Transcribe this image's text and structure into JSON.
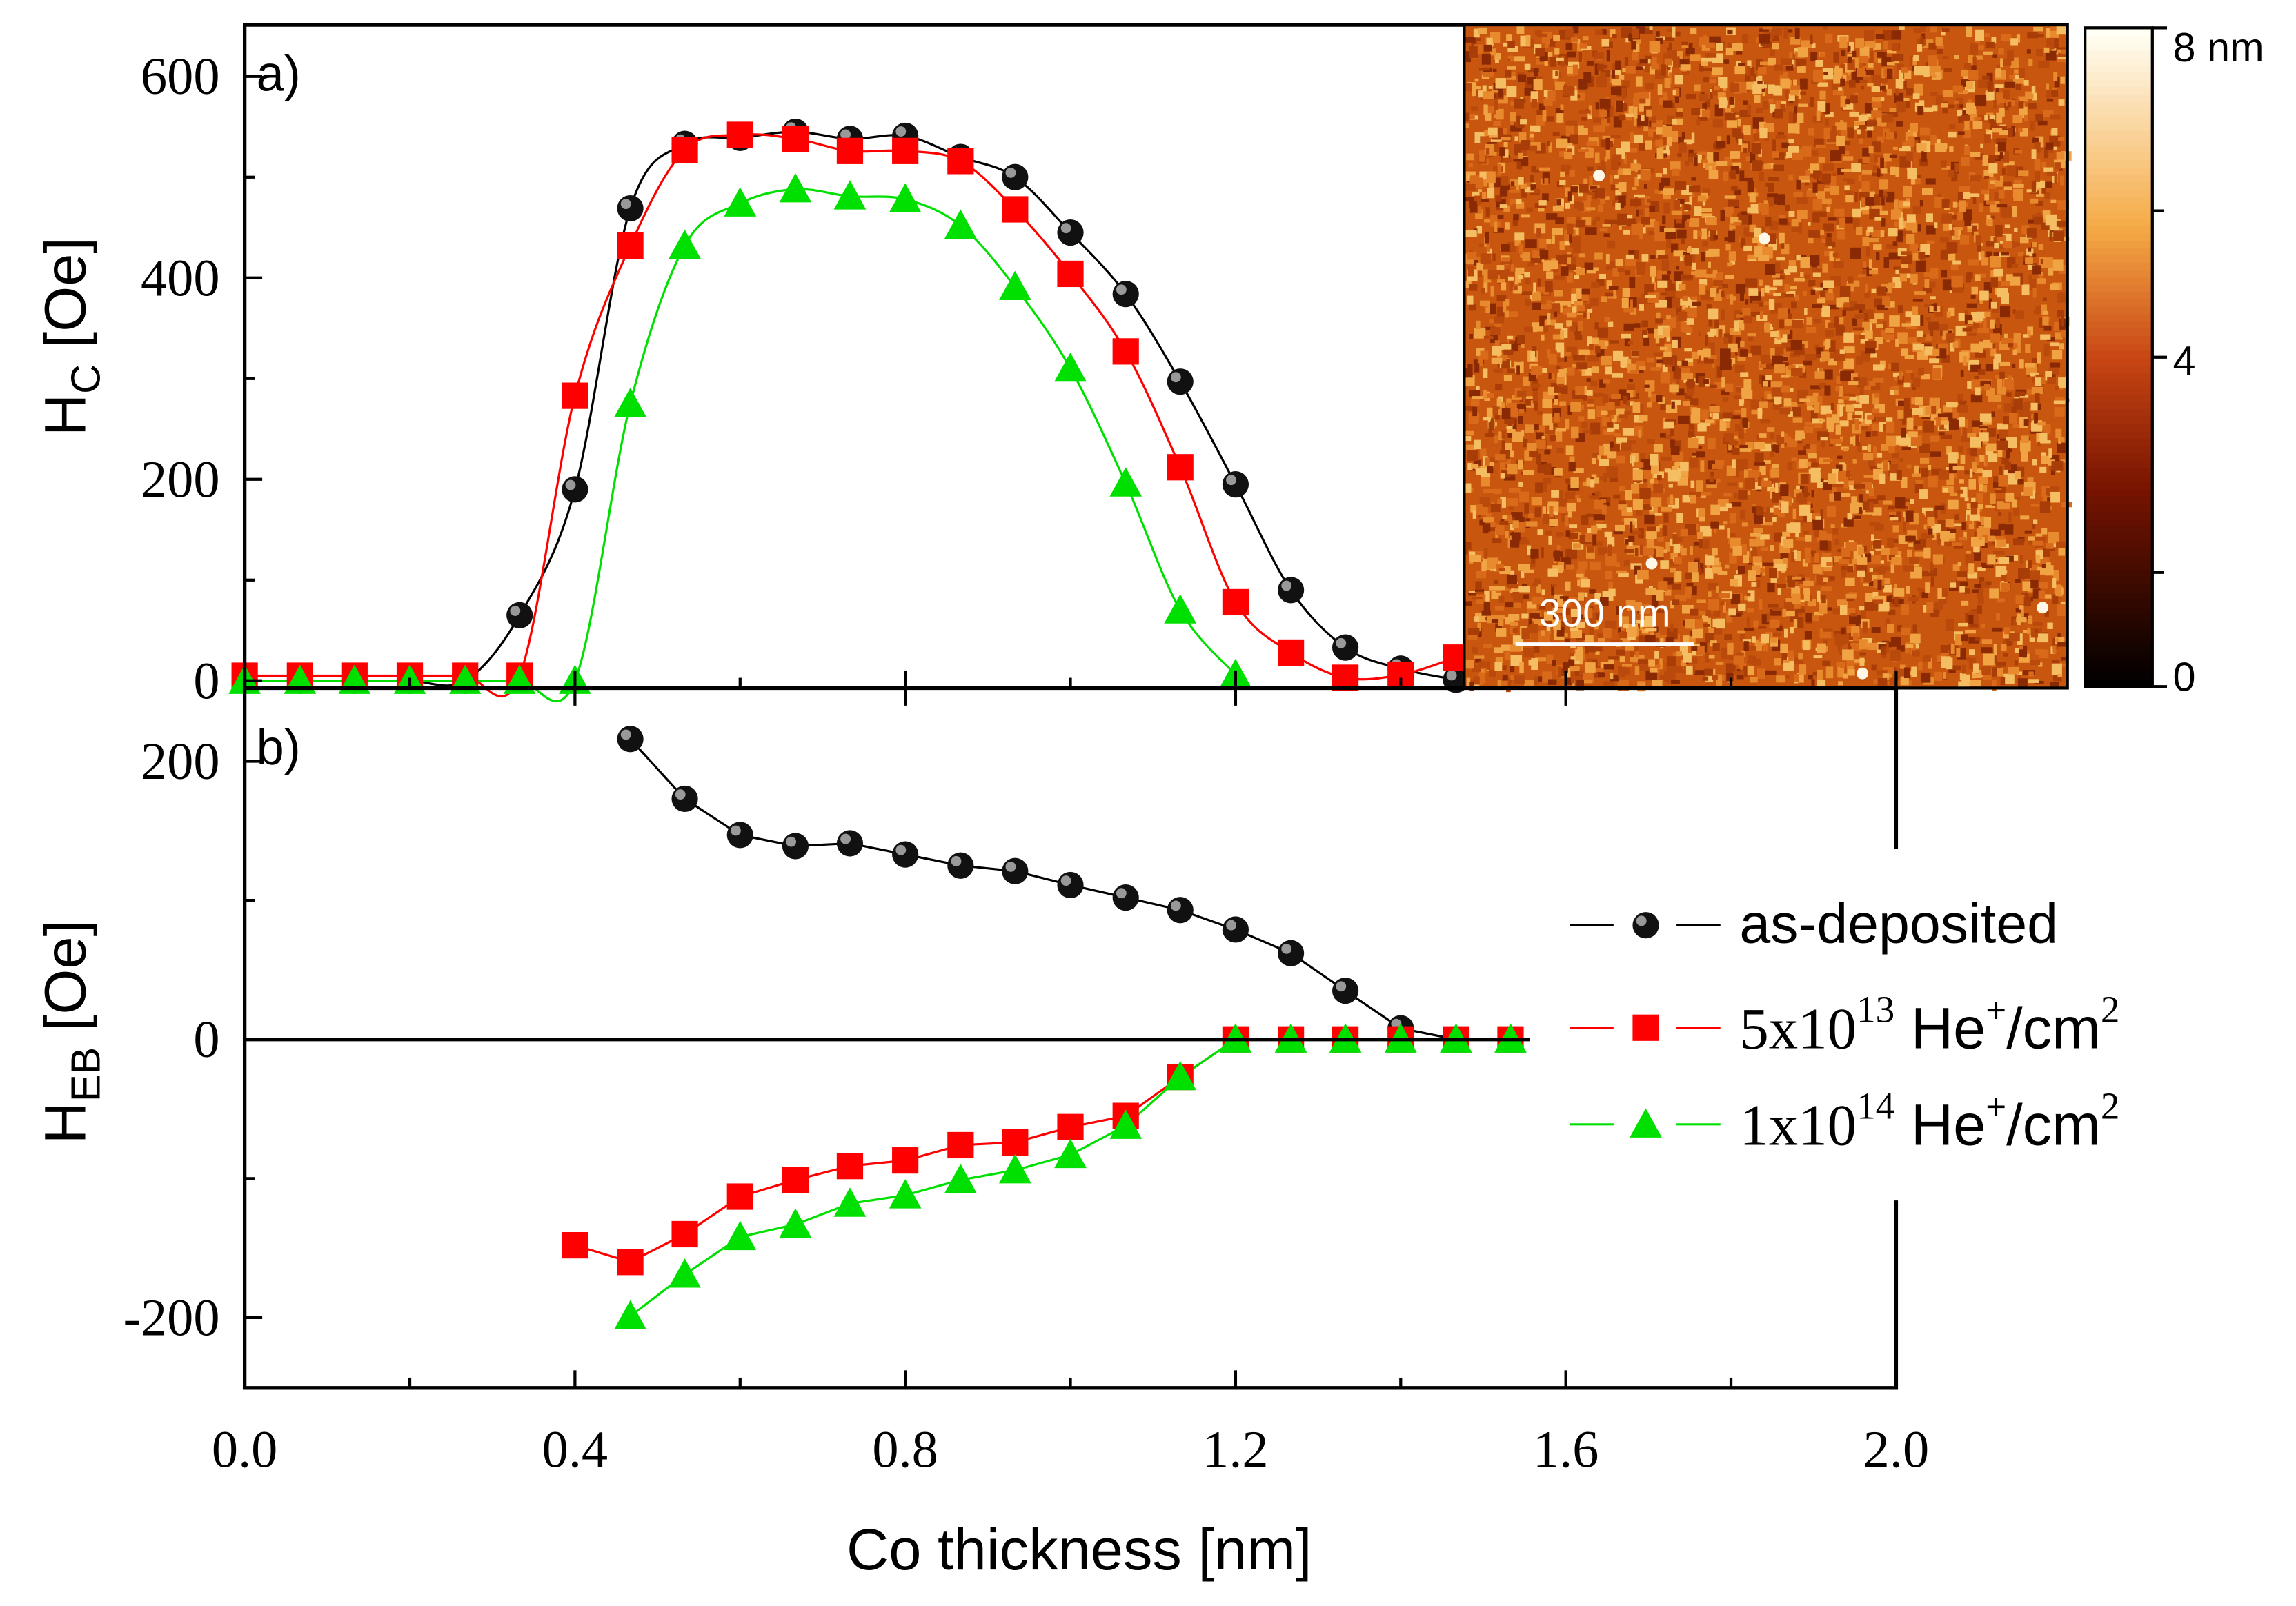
{
  "chart_data": [
    {
      "panel": "a)",
      "type": "line",
      "ylabel": {
        "main": "H",
        "sub": "C",
        "unit": " [Oe]"
      },
      "ylim": [
        0,
        650
      ],
      "yticks": [
        "0",
        "200",
        "400",
        "600"
      ],
      "ytick_values": [
        0,
        200,
        400,
        600
      ],
      "series": [
        {
          "name": "as-deposited",
          "color": "#000000",
          "marker": "sphere",
          "x": [
            0,
            0.067,
            0.133,
            0.2,
            0.267,
            0.333,
            0.4,
            0.467,
            0.533,
            0.6,
            0.667,
            0.733,
            0.8,
            0.867,
            0.933,
            1.0,
            1.067,
            1.133,
            1.2,
            1.267,
            1.333,
            1.4,
            1.467
          ],
          "y": [
            0,
            0,
            0,
            0,
            0,
            65,
            190,
            469,
            533,
            539,
            545,
            538,
            541,
            520,
            500,
            445,
            384,
            297,
            195,
            90,
            33,
            12,
            1
          ]
        },
        {
          "name": "5x10^13 He+/cm2",
          "color": "#ff0000",
          "marker": "square",
          "x": [
            0,
            0.067,
            0.133,
            0.2,
            0.267,
            0.333,
            0.4,
            0.467,
            0.533,
            0.6,
            0.667,
            0.733,
            0.8,
            0.867,
            0.933,
            1.0,
            1.067,
            1.133,
            1.2,
            1.267,
            1.333,
            1.4,
            1.467
          ],
          "y": [
            5,
            5,
            5,
            5,
            5,
            5,
            283,
            432,
            527,
            542,
            538,
            526,
            526,
            516,
            468,
            404,
            327,
            212,
            78,
            28,
            3,
            6,
            23
          ]
        },
        {
          "name": "1x10^14 He+/cm2",
          "color": "#00e000",
          "marker": "triangle",
          "x": [
            0,
            0.067,
            0.133,
            0.2,
            0.267,
            0.333,
            0.4,
            0.467,
            0.533,
            0.6,
            0.667,
            0.733,
            0.8,
            0.867,
            0.933,
            1.0,
            1.067,
            1.133,
            1.2
          ],
          "y": [
            0,
            0,
            0,
            0,
            0,
            0,
            0,
            275,
            432,
            474,
            488,
            481,
            478,
            452,
            391,
            310,
            196,
            70,
            6
          ]
        }
      ]
    },
    {
      "panel": "b)",
      "type": "line",
      "ylabel": {
        "main": "H",
        "sub": "EB",
        "unit": " [Oe]"
      },
      "ylim": [
        -250,
        250
      ],
      "yticks": [
        "-200",
        "0",
        "200"
      ],
      "ytick_values": [
        -200,
        0,
        200
      ],
      "series": [
        {
          "name": "as-deposited",
          "color": "#000000",
          "marker": "sphere",
          "x": [
            0.467,
            0.533,
            0.6,
            0.667,
            0.733,
            0.8,
            0.867,
            0.933,
            1.0,
            1.067,
            1.133,
            1.2,
            1.267,
            1.333,
            1.4,
            1.467,
            1.533
          ],
          "y": [
            216,
            173,
            147,
            139,
            141,
            133,
            125,
            121,
            111,
            102,
            93,
            79,
            62,
            35,
            8,
            0,
            0
          ]
        },
        {
          "name": "5x10^13 He+/cm2",
          "color": "#ff0000",
          "marker": "square",
          "x": [
            0.4,
            0.467,
            0.533,
            0.6,
            0.667,
            0.733,
            0.8,
            0.867,
            0.933,
            1.0,
            1.067,
            1.133,
            1.2,
            1.267,
            1.333,
            1.4,
            1.467,
            1.533
          ],
          "y": [
            -148,
            -160,
            -140,
            -113,
            -101,
            -91,
            -87,
            -76,
            -74,
            -63,
            -55,
            -27,
            0,
            0,
            0,
            0,
            0,
            0
          ]
        },
        {
          "name": "1x10^14 He+/cm2",
          "color": "#00e000",
          "marker": "triangle",
          "x": [
            0.467,
            0.533,
            0.6,
            0.667,
            0.733,
            0.8,
            0.867,
            0.933,
            1.0,
            1.067,
            1.133,
            1.2,
            1.267,
            1.333,
            1.4,
            1.467,
            1.533
          ],
          "y": [
            -199,
            -169,
            -142,
            -133,
            -118,
            -112,
            -101,
            -94,
            -83,
            -62,
            -27,
            0,
            0,
            0,
            0,
            0,
            0
          ]
        }
      ]
    }
  ],
  "xaxis": {
    "label": "Co thickness [nm]",
    "xlim": [
      0,
      2.0
    ],
    "ticks": [
      "0.0",
      "0.4",
      "0.8",
      "1.2",
      "1.6",
      "2.0"
    ],
    "tick_values": [
      0,
      0.4,
      0.8,
      1.2,
      1.6,
      2.0
    ]
  },
  "legend": {
    "placement": "right of panel b",
    "items": [
      {
        "text": "as-deposited"
      },
      {
        "base": "5x10",
        "exp": "13",
        "ion": " He",
        "charge": "+",
        "per": "/cm",
        "per_exp": "2"
      },
      {
        "base": "1x10",
        "exp": "14",
        "ion": " He",
        "charge": "+",
        "per": "/cm",
        "per_exp": "2"
      }
    ]
  },
  "inset": {
    "type": "AFM height image",
    "scale_bar": "300 nm",
    "colorbar": {
      "ticks": [
        "0",
        "4",
        "8 nm"
      ],
      "range_nm": [
        0,
        8
      ]
    }
  }
}
